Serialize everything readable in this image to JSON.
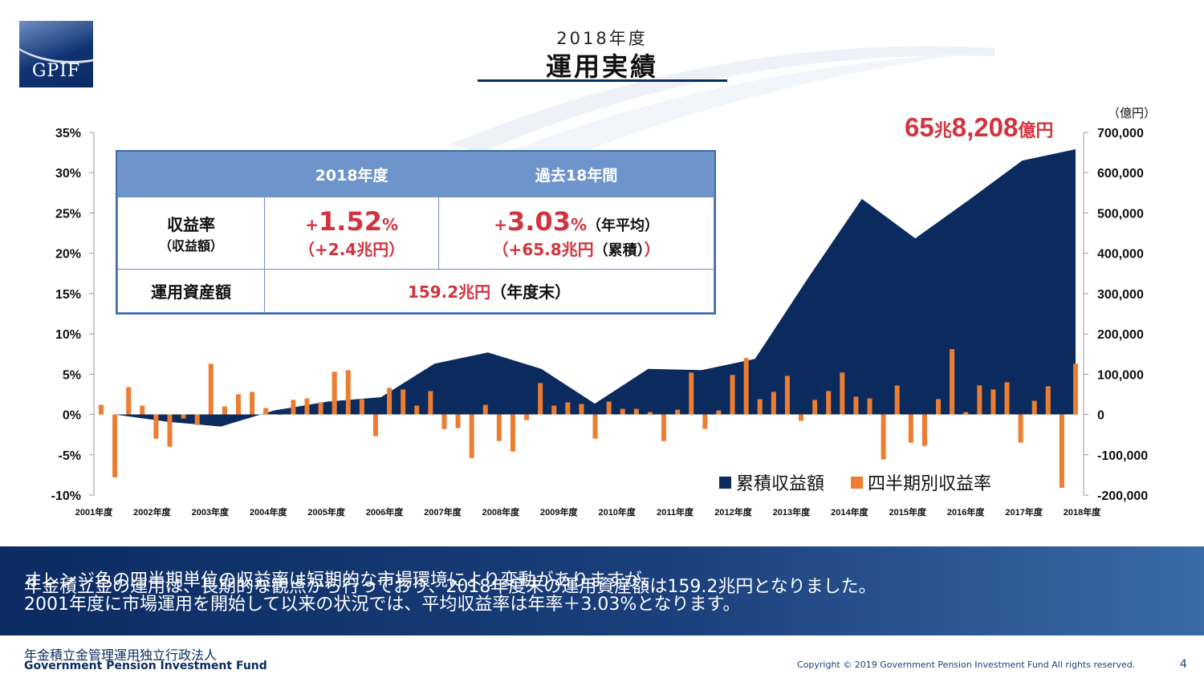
{
  "header": {
    "logo_text": "GPIF",
    "title_year": "2018年度",
    "title_main": "運用実績"
  },
  "chart_data": {
    "type": "bar+area",
    "right_axis_unit": "（億円）",
    "total_label": {
      "big1": "65",
      "small1": "兆",
      "big2": "8,208",
      "small2": "億円"
    },
    "y_left": {
      "min": -10,
      "max": 35,
      "ticks": [
        "35%",
        "30%",
        "25%",
        "20%",
        "15%",
        "10%",
        "5%",
        "0%",
        "-5%",
        "-10%"
      ]
    },
    "y_right": {
      "min": -200000,
      "max": 700000,
      "ticks": [
        "700,000",
        "600,000",
        "500,000",
        "400,000",
        "300,000",
        "200,000",
        "100,000",
        "0",
        "-100,000",
        "-200,000"
      ]
    },
    "x_labels": [
      "2001年度",
      "2002年度",
      "2003年度",
      "2004年度",
      "2005年度",
      "2006年度",
      "2007年度",
      "2008年度",
      "2009年度",
      "2010年度",
      "2011年度",
      "2012年度",
      "2013年度",
      "2014年度",
      "2015年度",
      "2016年度",
      "2017年度",
      "2018年度"
    ],
    "series": [
      {
        "name": "累積収益額",
        "type": "area",
        "color": "#0b2b5e",
        "values": [
          0,
          -18000,
          -30000,
          10000,
          32000,
          43000,
          126000,
          154000,
          113000,
          27000,
          113000,
          110000,
          138000,
          340000,
          535000,
          437000,
          532000,
          630000,
          658208
        ]
      },
      {
        "name": "四半期別収益率",
        "type": "bar",
        "color": "#ed7d31",
        "values": [
          1.2,
          -7.8,
          3.4,
          1.1,
          -3.0,
          -4.0,
          -0.5,
          -1.3,
          6.3,
          1.0,
          2.5,
          2.8,
          0.8,
          0,
          1.8,
          2.0,
          1.5,
          5.3,
          5.5,
          1.9,
          -2.7,
          3.3,
          3.1,
          1.1,
          2.9,
          -1.8,
          -1.7,
          -5.4,
          1.2,
          -3.3,
          -4.6,
          -0.7,
          3.9,
          1.1,
          1.5,
          1.3,
          -3.0,
          1.6,
          0.7,
          0.7,
          0.3,
          -3.3,
          0.6,
          5.2,
          -1.8,
          0.5,
          4.9,
          7.0,
          1.9,
          2.8,
          4.8,
          -0.8,
          1.8,
          2.9,
          5.2,
          2.2,
          2.0,
          -5.6,
          3.6,
          -3.5,
          -3.9,
          1.9,
          8.1,
          0.3,
          3.6,
          3.1,
          4.0,
          -3.5,
          1.7,
          3.5,
          -9.1,
          6.3
        ]
      }
    ]
  },
  "summary_table": {
    "col1": "2018年度",
    "col2": "過去18年間",
    "row1_head": "収益率",
    "row1_head_sub": "（収益額）",
    "r1c1_sign": "+",
    "r1c1_value": "1.52",
    "r1c1_unit": "%",
    "r1c1_sub": "（+2.4兆円）",
    "r1c2_sign": "+",
    "r1c2_value": "3.03",
    "r1c2_unit": "%",
    "r1c2_note": "（年平均）",
    "r1c2_sub": "（+65.8兆円",
    "r1c2_sub_note": "（累積）",
    "r1c2_sub_close": "）",
    "row2_head": "運用資産額",
    "r2_value": "159.2兆円",
    "r2_note": "（年度末）"
  },
  "band": {
    "line1": "オレンジ色の四半期単位の収益率は短期的な市場環境により変動がありますが、",
    "line2": "年金積立金の運用は、長期的な観点から行っており、2018年度末の運用資産額は159.2兆円となりました。",
    "line3": "2001年度に市場運用を開始して以来の状況では、平均収益率は年率＋3.03%となります。"
  },
  "footer": {
    "org_jp": "年金積立金管理運用独立行政法人",
    "org_en": "Government Pension Investment Fund",
    "copyright": "Copyright © 2019 Government Pension Investment Fund All rights reserved.",
    "page_number": "4"
  }
}
